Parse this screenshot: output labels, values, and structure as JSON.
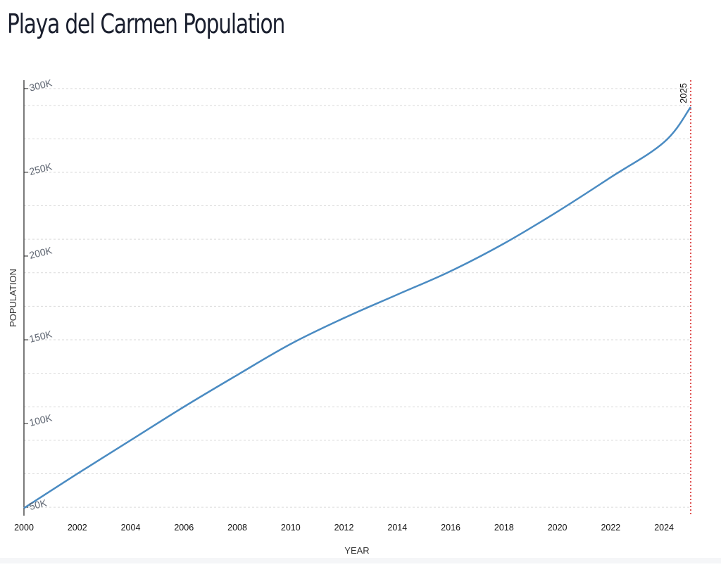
{
  "page": {
    "title": "Playa del Carmen Population"
  },
  "colors": {
    "line": "#4a8bc2",
    "marker": "#e05252",
    "grid": "#d9d9d9",
    "axis": "#222222",
    "ytick": "#5f6672",
    "text": "#333333"
  },
  "chart_data": {
    "type": "line",
    "title": "Playa del Carmen Population",
    "xlabel": "YEAR",
    "ylabel": "POPULATION",
    "xlim": [
      2000,
      2025
    ],
    "ylim": [
      45000,
      305000
    ],
    "grid": true,
    "x_ticks": [
      2000,
      2002,
      2004,
      2006,
      2008,
      2010,
      2012,
      2014,
      2016,
      2018,
      2020,
      2022,
      2024
    ],
    "x_tick_labels": [
      "2000",
      "2002",
      "2004",
      "2006",
      "2008",
      "2010",
      "2012",
      "2014",
      "2016",
      "2018",
      "2020",
      "2022",
      "2024"
    ],
    "y_ticks": [
      50000,
      100000,
      150000,
      200000,
      250000,
      300000
    ],
    "y_tick_labels": [
      "50K",
      "100K",
      "150K",
      "200K",
      "250K",
      "300K"
    ],
    "y_gridlines": [
      50000,
      70000,
      90000,
      110000,
      130000,
      150000,
      170000,
      190000,
      210000,
      230000,
      250000,
      270000,
      290000,
      300000
    ],
    "series": [
      {
        "name": "Playa del Carmen",
        "x": [
          2000,
          2002,
          2004,
          2006,
          2008,
          2010,
          2012,
          2014,
          2016,
          2018,
          2020,
          2022,
          2024,
          2025
        ],
        "values": [
          49500,
          70000,
          90000,
          110000,
          129000,
          147500,
          163000,
          177000,
          191000,
          207500,
          226500,
          247000,
          268000,
          289000
        ]
      }
    ],
    "marker_line": {
      "x": 2025,
      "label": "2025"
    }
  }
}
